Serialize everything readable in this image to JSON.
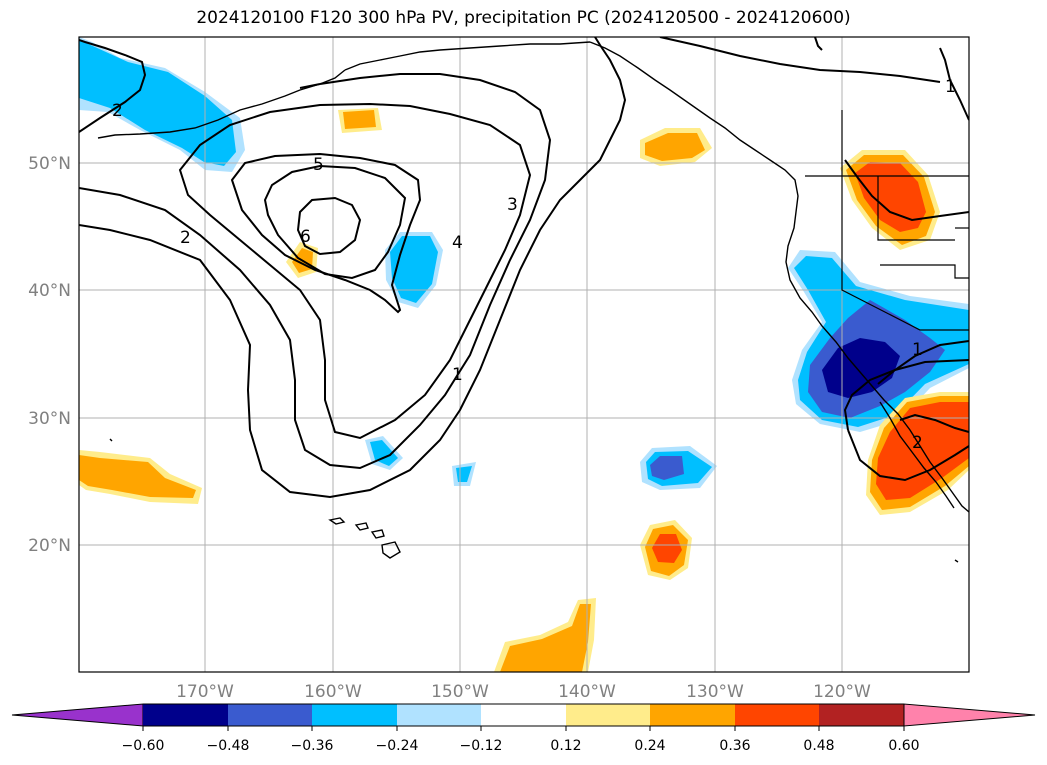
{
  "title": "2024120100 F120 300 hPa PV, precipitation PC (2024120500 - 2024120600)",
  "map": {
    "lat_labels": [
      "50°N",
      "40°N",
      "30°N",
      "20°N"
    ],
    "lon_labels": [
      "170°W",
      "160°W",
      "150°W",
      "140°W",
      "130°W",
      "120°W"
    ],
    "contour_labels": [
      "2",
      "5",
      "6",
      "2",
      "3",
      "4",
      "1",
      "1",
      "1",
      "2"
    ]
  },
  "colorbar": {
    "ticks": [
      "−0.60",
      "−0.48",
      "−0.36",
      "−0.24",
      "−0.12",
      "0.12",
      "0.24",
      "0.36",
      "0.48",
      "0.60"
    ],
    "colors": [
      "#9932cc",
      "#00008b",
      "#3a5bcf",
      "#00bfff",
      "#b0e2ff",
      "#ffffff",
      "#ffec8b",
      "#ffa500",
      "#ff4500",
      "#b22222",
      "#ff82ab"
    ]
  }
}
